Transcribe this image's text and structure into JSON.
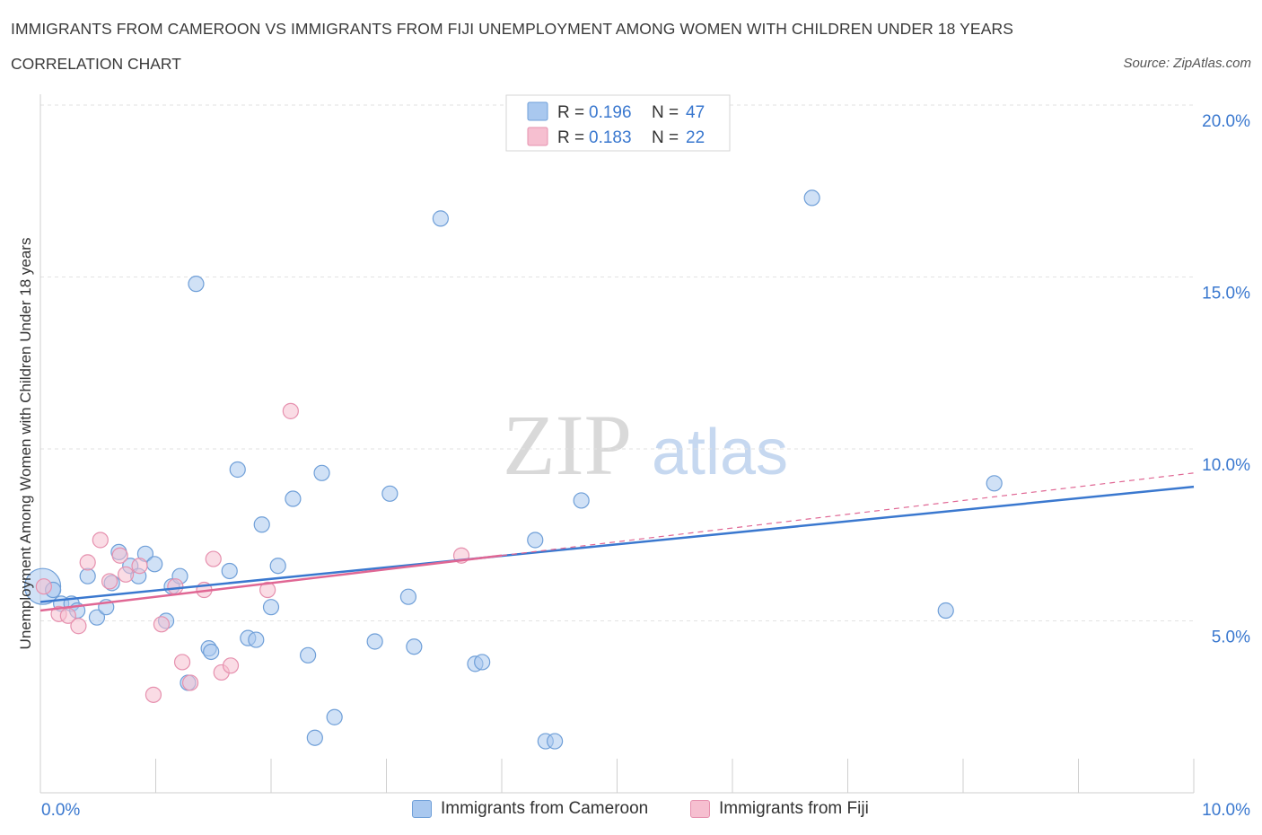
{
  "title": "IMMIGRANTS FROM CAMEROON VS IMMIGRANTS FROM FIJI UNEMPLOYMENT AMONG WOMEN WITH CHILDREN UNDER 18 YEARS",
  "subtitle": "CORRELATION CHART",
  "source": "Source: ZipAtlas.com",
  "watermark": {
    "zip": "ZIP",
    "atlas": "atlas"
  },
  "colors": {
    "cameroon_fill": "#a9c8ef",
    "cameroon_stroke": "#6f9fd8",
    "cameroon_line": "#3a78cf",
    "fiji_fill": "#f6bfd0",
    "fiji_stroke": "#e690ae",
    "fiji_line": "#e06794",
    "axis_text": "#3a78cf"
  },
  "stats_legend": [
    {
      "r_label": "R = ",
      "r_value": "0.196",
      "n_label": "N = ",
      "n_value": "47"
    },
    {
      "r_label": "R = ",
      "r_value": "0.183",
      "n_label": "N = ",
      "n_value": "22"
    }
  ],
  "legend": [
    {
      "label": "Immigrants from Cameroon"
    },
    {
      "label": "Immigrants from Fiji"
    }
  ],
  "chart_data": {
    "type": "scatter",
    "title": "IMMIGRANTS FROM CAMEROON VS IMMIGRANTS FROM FIJI UNEMPLOYMENT AMONG WOMEN WITH CHILDREN UNDER 18 YEARS",
    "subtitle": "CORRELATION CHART",
    "xlabel": "",
    "ylabel": "Unemployment Among Women with Children Under 18 years",
    "xlim": [
      0,
      10
    ],
    "ylim": [
      0,
      20
    ],
    "x_tick_labels": [
      "0.0%",
      "10.0%"
    ],
    "y_ticks": [
      5,
      10,
      15,
      20
    ],
    "y_tick_labels": [
      "5.0%",
      "10.0%",
      "15.0%",
      "20.0%"
    ],
    "grid": "horizontal dashed",
    "legend_position": "bottom",
    "series": [
      {
        "name": "Immigrants from Cameroon",
        "r": 0.196,
        "n": 47,
        "trend": {
          "x": [
            0,
            10
          ],
          "y": [
            5.55,
            8.9
          ],
          "style": "solid"
        },
        "points": [
          {
            "x": 0.02,
            "y": 6.0,
            "big": true
          },
          {
            "x": 0.11,
            "y": 5.9
          },
          {
            "x": 0.18,
            "y": 5.5
          },
          {
            "x": 0.27,
            "y": 5.5
          },
          {
            "x": 0.32,
            "y": 5.3
          },
          {
            "x": 0.41,
            "y": 6.3
          },
          {
            "x": 0.49,
            "y": 5.1
          },
          {
            "x": 0.57,
            "y": 5.4
          },
          {
            "x": 0.62,
            "y": 6.1
          },
          {
            "x": 0.68,
            "y": 7.0
          },
          {
            "x": 0.78,
            "y": 6.6
          },
          {
            "x": 0.85,
            "y": 6.3
          },
          {
            "x": 0.91,
            "y": 6.95
          },
          {
            "x": 0.99,
            "y": 6.65
          },
          {
            "x": 1.09,
            "y": 5.0
          },
          {
            "x": 1.14,
            "y": 6.0
          },
          {
            "x": 1.21,
            "y": 6.3
          },
          {
            "x": 1.28,
            "y": 3.2
          },
          {
            "x": 1.35,
            "y": 14.8
          },
          {
            "x": 1.46,
            "y": 4.2
          },
          {
            "x": 1.48,
            "y": 4.1
          },
          {
            "x": 1.64,
            "y": 6.45
          },
          {
            "x": 1.71,
            "y": 9.4
          },
          {
            "x": 1.8,
            "y": 4.5
          },
          {
            "x": 1.87,
            "y": 4.45
          },
          {
            "x": 1.92,
            "y": 7.8
          },
          {
            "x": 2.0,
            "y": 5.4
          },
          {
            "x": 2.06,
            "y": 6.6
          },
          {
            "x": 2.19,
            "y": 8.55
          },
          {
            "x": 2.32,
            "y": 4.0
          },
          {
            "x": 2.38,
            "y": 1.6
          },
          {
            "x": 2.44,
            "y": 9.3
          },
          {
            "x": 2.55,
            "y": 2.2
          },
          {
            "x": 2.9,
            "y": 4.4
          },
          {
            "x": 3.03,
            "y": 8.7
          },
          {
            "x": 3.19,
            "y": 5.7
          },
          {
            "x": 3.24,
            "y": 4.25
          },
          {
            "x": 3.47,
            "y": 16.7
          },
          {
            "x": 3.77,
            "y": 3.75
          },
          {
            "x": 3.83,
            "y": 3.8
          },
          {
            "x": 4.29,
            "y": 7.35
          },
          {
            "x": 4.38,
            "y": 1.5
          },
          {
            "x": 4.46,
            "y": 1.5
          },
          {
            "x": 4.69,
            "y": 8.5
          },
          {
            "x": 6.69,
            "y": 17.3
          },
          {
            "x": 7.85,
            "y": 5.3
          },
          {
            "x": 8.27,
            "y": 9.0
          }
        ]
      },
      {
        "name": "Immigrants from Fiji",
        "r": 0.183,
        "n": 22,
        "trend": {
          "x": [
            0,
            4.0,
            10
          ],
          "y": [
            5.3,
            6.9,
            9.3
          ],
          "style": "solid then dashed"
        },
        "points": [
          {
            "x": 0.03,
            "y": 6.0
          },
          {
            "x": 0.16,
            "y": 5.2
          },
          {
            "x": 0.24,
            "y": 5.15
          },
          {
            "x": 0.33,
            "y": 4.85
          },
          {
            "x": 0.41,
            "y": 6.7
          },
          {
            "x": 0.52,
            "y": 7.35
          },
          {
            "x": 0.6,
            "y": 6.15
          },
          {
            "x": 0.69,
            "y": 6.9
          },
          {
            "x": 0.74,
            "y": 6.35
          },
          {
            "x": 0.86,
            "y": 6.6
          },
          {
            "x": 0.98,
            "y": 2.85
          },
          {
            "x": 1.05,
            "y": 4.9
          },
          {
            "x": 1.17,
            "y": 6.0
          },
          {
            "x": 1.23,
            "y": 3.8
          },
          {
            "x": 1.3,
            "y": 3.2
          },
          {
            "x": 1.42,
            "y": 5.9
          },
          {
            "x": 1.5,
            "y": 6.8
          },
          {
            "x": 1.57,
            "y": 3.5
          },
          {
            "x": 1.65,
            "y": 3.7
          },
          {
            "x": 1.97,
            "y": 5.9
          },
          {
            "x": 2.17,
            "y": 11.1
          },
          {
            "x": 3.65,
            "y": 6.9
          }
        ]
      }
    ]
  }
}
